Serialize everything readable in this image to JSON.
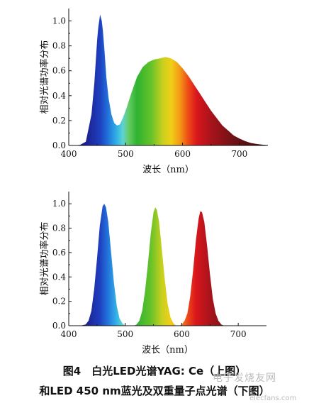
{
  "figure_caption": {
    "line1": "图4　白光LED光谱YAG: Ce（上图）",
    "line2": "和LED 450 nm蓝光及双重量子点光谱（下图）"
  },
  "watermark": {
    "text1": "电子发烧友网",
    "text2": "elecfans.com"
  },
  "chart_data": [
    {
      "type": "area",
      "xlabel": "波长（nm）",
      "ylabel": "相对光谱功率分布",
      "xlim": [
        400,
        750
      ],
      "ylim": [
        0,
        1.1
      ],
      "xticks": [
        400,
        500,
        600,
        700
      ],
      "xtick_labels": [
        "400",
        "500",
        "600",
        "700"
      ],
      "yticks": [
        0.0,
        0.2,
        0.4,
        0.6,
        0.8,
        1.0
      ],
      "ytick_labels": [
        "0.0",
        "0.2",
        "0.4",
        "0.6",
        "0.8",
        "1.0"
      ],
      "grid": false,
      "fill": "spectral",
      "series": [
        {
          "x": [
            400,
            410,
            420,
            430,
            440,
            445,
            450,
            452,
            455,
            458,
            460,
            463,
            466,
            470,
            475,
            480,
            485,
            490,
            495,
            500,
            510,
            520,
            530,
            540,
            550,
            560,
            570,
            580,
            590,
            600,
            610,
            620,
            630,
            640,
            650,
            660,
            670,
            680,
            690,
            700,
            710,
            720,
            730,
            740,
            750
          ],
          "y": [
            0.0,
            0.0,
            0.005,
            0.03,
            0.25,
            0.5,
            0.85,
            0.95,
            1.05,
            1.0,
            0.92,
            0.75,
            0.55,
            0.38,
            0.25,
            0.18,
            0.16,
            0.17,
            0.22,
            0.28,
            0.42,
            0.55,
            0.63,
            0.67,
            0.69,
            0.7,
            0.71,
            0.7,
            0.67,
            0.62,
            0.56,
            0.49,
            0.42,
            0.35,
            0.28,
            0.22,
            0.16,
            0.12,
            0.08,
            0.055,
            0.035,
            0.02,
            0.012,
            0.006,
            0.003
          ]
        }
      ]
    },
    {
      "type": "area",
      "xlabel": "波长（nm）",
      "ylabel": "相对光谱功率分布",
      "xlim": [
        400,
        750
      ],
      "ylim": [
        0,
        1.1
      ],
      "xticks": [
        400,
        500,
        600,
        700
      ],
      "xtick_labels": [
        "400",
        "500",
        "600",
        "700"
      ],
      "yticks": [
        0.0,
        0.2,
        0.4,
        0.6,
        0.8,
        1.0
      ],
      "ytick_labels": [
        "0.0",
        "0.2",
        "0.4",
        "0.6",
        "0.8",
        "1.0"
      ],
      "grid": false,
      "fill": "spectral",
      "series": [
        {
          "x": [
            420,
            430,
            435,
            440,
            445,
            450,
            455,
            460,
            463,
            466,
            470,
            475,
            480,
            485,
            490,
            495,
            500
          ],
          "y": [
            0.0,
            0.01,
            0.04,
            0.12,
            0.3,
            0.55,
            0.82,
            0.98,
            1.0,
            0.97,
            0.85,
            0.6,
            0.35,
            0.16,
            0.06,
            0.02,
            0.0
          ]
        },
        {
          "x": [
            515,
            520,
            525,
            530,
            535,
            540,
            545,
            550,
            553,
            556,
            560,
            565,
            570,
            575,
            580,
            585,
            590
          ],
          "y": [
            0.0,
            0.01,
            0.04,
            0.12,
            0.28,
            0.5,
            0.75,
            0.93,
            0.97,
            0.95,
            0.85,
            0.62,
            0.38,
            0.18,
            0.07,
            0.02,
            0.0
          ]
        },
        {
          "x": [
            595,
            600,
            605,
            610,
            615,
            620,
            625,
            630,
            633,
            636,
            640,
            645,
            650,
            655,
            660,
            665,
            670,
            675
          ],
          "y": [
            0.0,
            0.01,
            0.04,
            0.1,
            0.24,
            0.45,
            0.7,
            0.88,
            0.94,
            0.93,
            0.85,
            0.65,
            0.42,
            0.22,
            0.1,
            0.04,
            0.01,
            0.0
          ]
        }
      ]
    }
  ]
}
